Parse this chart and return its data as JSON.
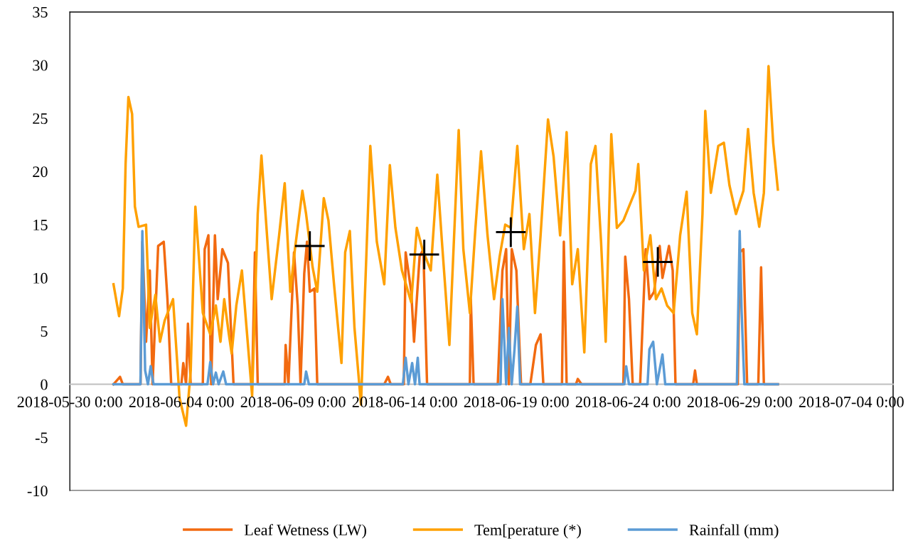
{
  "chart_data": {
    "type": "line",
    "legend": "bottom",
    "grid": false,
    "line_style": "solid",
    "ylim": [
      -10,
      35
    ],
    "yticks": [
      -10,
      -5,
      0,
      5,
      10,
      15,
      20,
      25,
      30,
      35
    ],
    "xlim": [
      "2018-05-30T00:00",
      "2018-07-05T21:00"
    ],
    "xticks": [
      {
        "value": "2018-05-30",
        "label": "2018-05-30 0:00"
      },
      {
        "value": "2018-06-04",
        "label": "2018-06-04 0:00"
      },
      {
        "value": "2018-06-09",
        "label": "2018-06-09 0:00"
      },
      {
        "value": "2018-06-14",
        "label": "2018-06-14 0:00"
      },
      {
        "value": "2018-06-19",
        "label": "2018-06-19 0:00"
      },
      {
        "value": "2018-06-24",
        "label": "2018-06-24 0:00"
      },
      {
        "value": "2018-06-29",
        "label": "2018-06-29 0:00"
      },
      {
        "value": "2018-07-04",
        "label": "2018-07-04 0:00"
      }
    ],
    "series": [
      {
        "name": "Leaf Wetness (LW)",
        "color": "#f26a10",
        "marker": "none",
        "x": [
          "2018-05-31T23:00",
          "2018-06-01T06:00",
          "2018-06-01T09:00",
          "2018-06-02T04:00",
          "2018-06-02T06:00",
          "2018-06-02T10:00",
          "2018-06-02T14:00",
          "2018-06-02T17:00",
          "2018-06-02T23:00",
          "2018-06-03T05:00",
          "2018-06-03T09:00",
          "2018-06-03T13:00",
          "2018-06-04T00:00",
          "2018-06-04T02:00",
          "2018-06-04T05:00",
          "2018-06-04T07:00",
          "2018-06-04T10:00",
          "2018-06-04T23:00",
          "2018-06-05T01:00",
          "2018-06-05T05:00",
          "2018-06-05T08:00",
          "2018-06-05T12:00",
          "2018-06-05T15:00",
          "2018-06-05T20:00",
          "2018-06-06T02:00",
          "2018-06-06T05:00",
          "2018-06-06T08:00",
          "2018-06-07T04:00",
          "2018-06-07T07:00",
          "2018-06-07T10:00",
          "2018-06-08T15:00",
          "2018-06-08T16:00",
          "2018-06-08T19:00",
          "2018-06-09T01:00",
          "2018-06-09T05:00",
          "2018-06-09T08:00",
          "2018-06-09T12:00",
          "2018-06-09T15:00",
          "2018-06-09T18:00",
          "2018-06-09T23:00",
          "2018-06-10T02:00",
          "2018-06-13T02:00",
          "2018-06-13T06:00",
          "2018-06-13T09:00",
          "2018-06-13T23:00",
          "2018-06-14T01:00",
          "2018-06-14T07:00",
          "2018-06-14T10:00",
          "2018-06-14T16:00",
          "2018-06-14T20:00",
          "2018-06-15T00:00",
          "2018-06-16T22:00",
          "2018-06-16T23:00",
          "2018-06-17T02:00",
          "2018-06-18T04:00",
          "2018-06-18T09:00",
          "2018-06-18T13:00",
          "2018-06-18T16:00",
          "2018-06-18T19:00",
          "2018-06-19T00:00",
          "2018-06-19T05:00",
          "2018-06-19T15:00",
          "2018-06-19T21:00",
          "2018-06-20T02:00",
          "2018-06-20T05:00",
          "2018-06-21T01:00",
          "2018-06-21T03:00",
          "2018-06-21T06:00",
          "2018-06-21T16:00",
          "2018-06-21T18:00",
          "2018-06-21T22:00",
          "2018-06-23T19:00",
          "2018-06-23T21:00",
          "2018-06-24T01:00",
          "2018-06-24T05:00",
          "2018-06-24T13:00",
          "2018-06-24T19:00",
          "2018-06-24T23:00",
          "2018-06-25T04:00",
          "2018-06-25T10:00",
          "2018-06-25T13:00",
          "2018-06-25T20:00",
          "2018-06-26T00:00",
          "2018-06-26T03:00",
          "2018-06-26T22:00",
          "2018-06-27T00:00",
          "2018-06-27T02:00",
          "2018-06-28T22:00",
          "2018-06-29T00:00",
          "2018-06-29T04:00",
          "2018-06-29T08:00",
          "2018-06-29T20:00",
          "2018-06-29T23:00",
          "2018-06-30T02:00",
          "2018-06-30T17:00"
        ],
        "values": [
          0,
          0.7,
          0,
          0,
          13.4,
          4,
          10.7,
          0,
          13,
          13.4,
          8,
          0,
          0,
          2,
          0,
          5.7,
          0,
          0,
          12.7,
          14,
          0,
          14,
          8,
          12.7,
          11.4,
          5.7,
          0,
          0,
          12.4,
          0,
          0,
          3.7,
          0,
          12.4,
          7.4,
          0,
          10.4,
          13.4,
          8.7,
          9,
          0,
          0,
          0.7,
          0,
          0,
          12.4,
          8.7,
          4,
          12,
          12.7,
          0,
          0,
          8,
          0,
          0,
          10.7,
          12.7,
          0,
          12.7,
          10.7,
          0,
          0,
          3.7,
          4.7,
          0,
          0,
          13.4,
          0,
          0,
          0.5,
          0,
          0,
          12,
          8,
          0,
          0,
          12.7,
          8,
          8.7,
          13,
          10,
          13,
          10.7,
          0,
          0,
          1.3,
          0,
          0,
          12.4,
          12.7,
          0,
          0,
          11,
          0,
          0
        ]
      },
      {
        "name": "Tem[perature (*)",
        "color": "#ffa000",
        "marker": "none",
        "x": [
          "2018-05-31T23:00",
          "2018-06-01T05:00",
          "2018-06-01T09:00",
          "2018-06-01T12:00",
          "2018-06-01T15:00",
          "2018-06-01T19:00",
          "2018-06-01T22:00",
          "2018-06-02T02:00",
          "2018-06-02T10:00",
          "2018-06-02T14:00",
          "2018-06-02T20:00",
          "2018-06-03T01:00",
          "2018-06-03T06:00",
          "2018-06-03T15:00",
          "2018-06-03T22:00",
          "2018-06-04T05:00",
          "2018-06-04T10:00",
          "2018-06-04T15:00",
          "2018-06-04T23:00",
          "2018-06-05T07:00",
          "2018-06-05T13:00",
          "2018-06-05T18:00",
          "2018-06-05T22:00",
          "2018-06-06T03:00",
          "2018-06-06T06:00",
          "2018-06-06T11:00",
          "2018-06-06T17:00",
          "2018-06-06T22:00",
          "2018-06-07T04:00",
          "2018-06-07T10:00",
          "2018-06-07T14:00",
          "2018-06-07T20:00",
          "2018-06-08T01:00",
          "2018-06-08T09:00",
          "2018-06-08T15:00",
          "2018-06-08T21:00",
          "2018-06-09T02:00",
          "2018-06-09T10:00",
          "2018-06-09T14:00",
          "2018-06-09T21:00",
          "2018-06-10T02:00",
          "2018-06-10T09:00",
          "2018-06-10T14:00",
          "2018-06-10T20:00",
          "2018-06-11T04:00",
          "2018-06-11T08:00",
          "2018-06-11T13:00",
          "2018-06-11T18:00",
          "2018-06-12T01:00",
          "2018-06-12T07:00",
          "2018-06-12T11:00",
          "2018-06-12T18:00",
          "2018-06-13T02:00",
          "2018-06-13T08:00",
          "2018-06-13T14:00",
          "2018-06-13T21:00",
          "2018-06-14T07:00",
          "2018-06-14T13:00",
          "2018-06-14T19:00",
          "2018-06-15T04:00",
          "2018-06-15T11:00",
          "2018-06-15T16:00",
          "2018-06-16T00:00",
          "2018-06-16T10:00",
          "2018-06-16T15:00",
          "2018-06-16T22:00",
          "2018-06-17T04:00",
          "2018-06-17T10:00",
          "2018-06-17T17:00",
          "2018-06-18T00:00",
          "2018-06-18T06:00",
          "2018-06-18T12:00",
          "2018-06-18T18:00",
          "2018-06-19T01:00",
          "2018-06-19T08:00",
          "2018-06-19T14:00",
          "2018-06-19T20:00",
          "2018-06-20T02:00",
          "2018-06-20T10:00",
          "2018-06-20T16:00",
          "2018-06-20T23:00",
          "2018-06-21T06:00",
          "2018-06-21T12:00",
          "2018-06-21T18:00",
          "2018-06-22T01:00",
          "2018-06-22T08:00",
          "2018-06-22T13:00",
          "2018-06-22T19:00",
          "2018-06-23T00:00",
          "2018-06-23T06:00",
          "2018-06-23T12:00",
          "2018-06-23T19:00",
          "2018-06-24T01:00",
          "2018-06-24T08:00",
          "2018-06-24T11:00",
          "2018-06-24T17:00",
          "2018-06-25T00:00",
          "2018-06-25T06:00",
          "2018-06-25T12:00",
          "2018-06-25T18:00",
          "2018-06-26T01:00",
          "2018-06-26T08:00",
          "2018-06-26T15:00",
          "2018-06-26T21:00",
          "2018-06-27T02:00",
          "2018-06-27T08:00",
          "2018-06-27T11:00",
          "2018-06-27T17:00",
          "2018-06-28T01:00",
          "2018-06-28T07:00",
          "2018-06-28T13:00",
          "2018-06-28T20:00",
          "2018-06-29T04:00",
          "2018-06-29T09:00",
          "2018-06-29T15:00",
          "2018-06-29T21:00",
          "2018-06-30T02:00",
          "2018-06-30T07:00",
          "2018-06-30T12:00",
          "2018-06-30T17:00"
        ],
        "values": [
          9.4,
          6.4,
          9,
          20.7,
          27,
          25.4,
          16.7,
          14.8,
          15,
          5.3,
          8.4,
          4,
          6,
          8,
          -1.3,
          -3.9,
          1.3,
          16.7,
          6.7,
          4.7,
          7.4,
          4,
          8,
          4.7,
          2.9,
          7.4,
          10.7,
          5.3,
          -1.1,
          16,
          21.5,
          14,
          8,
          14,
          18.9,
          8.7,
          12.7,
          18.2,
          16,
          11,
          8.7,
          17.5,
          15.4,
          9.4,
          2,
          12.4,
          14.4,
          5.3,
          -1.9,
          12.7,
          22.4,
          13.4,
          9.4,
          20.6,
          14.7,
          10.7,
          7.7,
          14.7,
          12.7,
          10.7,
          19.7,
          13.4,
          3.7,
          23.9,
          12.7,
          6.7,
          14.7,
          21.9,
          14,
          8,
          12,
          15,
          14.7,
          22.4,
          12.7,
          16,
          6.7,
          14,
          24.9,
          21.4,
          14,
          23.7,
          9.4,
          12.7,
          3,
          20.7,
          22.4,
          13.4,
          4,
          23.5,
          14.7,
          15.4,
          16.7,
          18.2,
          20.7,
          10.7,
          14,
          8,
          9,
          7.4,
          6.7,
          14,
          18.1,
          6.7,
          4.7,
          16,
          25.7,
          18,
          22.4,
          22.7,
          18.7,
          16,
          18.2,
          24,
          18,
          14.8,
          18,
          29.9,
          22.7,
          18.3
        ]
      },
      {
        "name": "Rainfall (mm)",
        "color": "#5b9bd5",
        "marker": "none",
        "x": [
          "2018-05-31T23:00",
          "2018-06-02T04:00",
          "2018-06-02T06:00",
          "2018-06-02T09:00",
          "2018-06-02T12:00",
          "2018-06-02T15:00",
          "2018-06-02T18:00",
          "2018-06-05T04:00",
          "2018-06-05T07:00",
          "2018-06-05T10:00",
          "2018-06-05T13:00",
          "2018-06-05T16:00",
          "2018-06-05T21:00",
          "2018-06-06T00:00",
          "2018-06-09T12:00",
          "2018-06-09T14:00",
          "2018-06-09T17:00",
          "2018-06-13T22:00",
          "2018-06-14T01:00",
          "2018-06-14T04:00",
          "2018-06-14T08:00",
          "2018-06-14T11:00",
          "2018-06-14T14:00",
          "2018-06-14T16:00",
          "2018-06-18T07:00",
          "2018-06-18T09:00",
          "2018-06-18T13:00",
          "2018-06-18T16:00",
          "2018-06-18T19:00",
          "2018-06-18T22:00",
          "2018-06-19T01:00",
          "2018-06-19T04:00",
          "2018-06-23T20:00",
          "2018-06-23T22:00",
          "2018-06-24T01:00",
          "2018-06-24T21:00",
          "2018-06-24T23:00",
          "2018-06-25T03:00",
          "2018-06-25T07:00",
          "2018-06-25T13:00",
          "2018-06-25T16:00",
          "2018-06-28T21:00",
          "2018-06-29T00:00",
          "2018-06-29T02:00",
          "2018-06-29T05:00",
          "2018-06-30T17:00"
        ],
        "values": [
          0,
          0,
          14.4,
          1.3,
          0,
          1.7,
          0,
          0,
          2.1,
          0,
          1.1,
          0,
          1.2,
          0,
          0,
          1.2,
          0,
          0,
          2.5,
          0,
          2,
          0,
          2.5,
          0,
          0,
          8,
          0,
          5.3,
          0,
          3.3,
          7.3,
          0,
          0,
          1.7,
          0,
          0,
          3.3,
          4,
          0,
          2.8,
          0,
          0,
          14.4,
          7,
          0,
          0
        ]
      },
      {
        "type": "scatter",
        "color": "#000000",
        "marker": "cross",
        "x": [
          "2018-06-09T18:00",
          "2018-06-14T21:00",
          "2018-06-18T18:00",
          "2018-06-25T08:00"
        ],
        "values": [
          13,
          12.2,
          14.3,
          11.5
        ]
      }
    ]
  }
}
